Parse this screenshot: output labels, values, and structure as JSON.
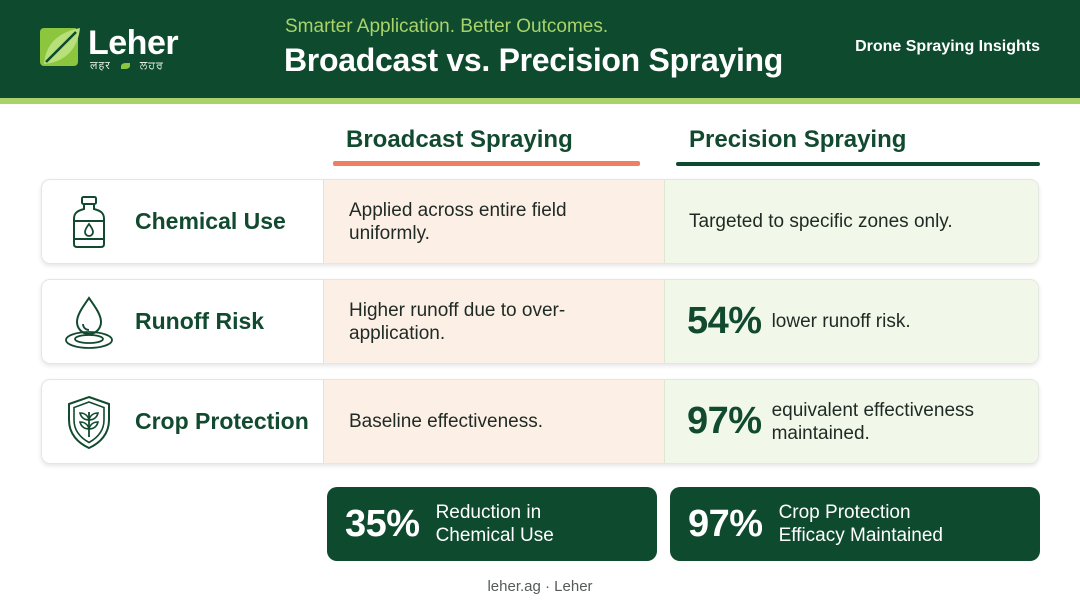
{
  "header": {
    "logo_name": "Leher",
    "logo_sub_left": "लहर",
    "logo_sub_right": "ਲਹਰ",
    "tagline": "Smarter Application. Better Outcomes.",
    "title": "Broadcast vs. Precision Spraying",
    "right_label": "Drone Spraying Insights"
  },
  "columns": {
    "broadcast": "Broadcast Spraying",
    "precision": "Precision Spraying"
  },
  "rows": [
    {
      "icon": "bottle-icon",
      "label": "Chemical Use",
      "broadcast": "Applied across entire field uniformly.",
      "precision_stat": "",
      "precision": "Targeted to specific zones only."
    },
    {
      "icon": "water-drop-icon",
      "label": "Runoff Risk",
      "broadcast": "Higher runoff due to over-application.",
      "precision_stat": "54%",
      "precision": "lower runoff risk."
    },
    {
      "icon": "shield-leaf-icon",
      "label": "Crop Protection",
      "broadcast": "Baseline effectiveness.",
      "precision_stat": "97%",
      "precision": "equivalent effectiveness maintained."
    }
  ],
  "summary": [
    {
      "value": "35%",
      "line1": "Reduction in",
      "line2": "Chemical Use"
    },
    {
      "value": "97%",
      "line1": "Crop Protection",
      "line2": "Efficacy Maintained"
    }
  ],
  "footer": "leher.ag · Leher",
  "colors": {
    "header_bg": "#0e4a2e",
    "accent_green": "#a9d36a",
    "broadcast_accent": "#ef7e62",
    "broadcast_cell": "#fcefe6",
    "precision_cell": "#f1f8ea"
  }
}
